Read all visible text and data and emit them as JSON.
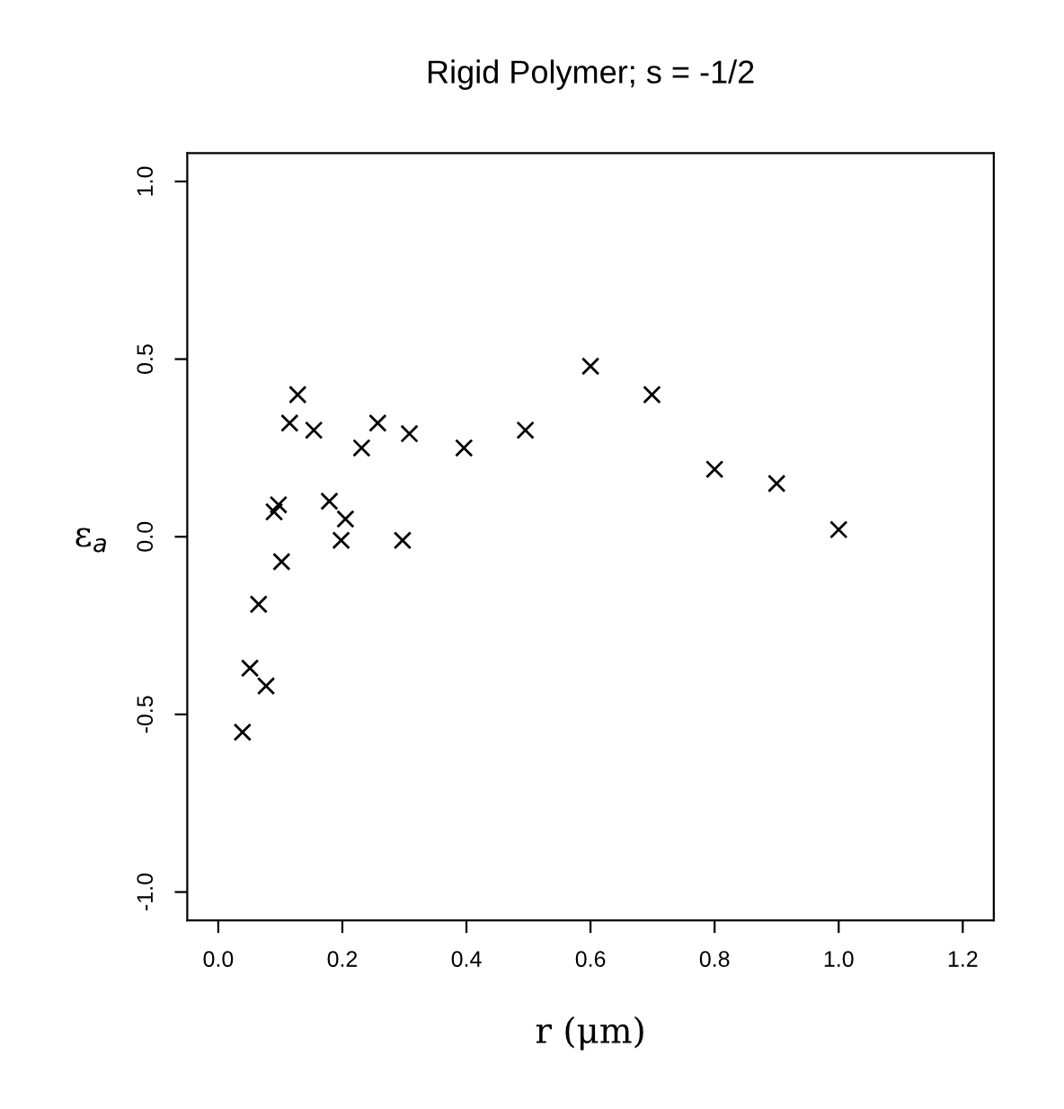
{
  "chart_data": {
    "type": "scatter",
    "title": "Rigid Polymer; s = -1/2",
    "xlabel": "r (μm)",
    "ylabel": "ε$_{a}$",
    "x": [
      0.039,
      0.051,
      0.065,
      0.077,
      0.09,
      0.097,
      0.102,
      0.115,
      0.128,
      0.154,
      0.179,
      0.198,
      0.205,
      0.231,
      0.257,
      0.297,
      0.308,
      0.396,
      0.495,
      0.6,
      0.699,
      0.8,
      0.9,
      1.0
    ],
    "values": [
      -0.55,
      -0.37,
      -0.19,
      -0.42,
      0.07,
      0.09,
      -0.07,
      0.32,
      0.4,
      0.3,
      0.1,
      -0.01,
      0.05,
      0.25,
      0.32,
      -0.01,
      0.29,
      0.25,
      0.3,
      0.48,
      0.4,
      0.19,
      0.15,
      0.02
    ],
    "color": "#000000",
    "marker": "cross",
    "xlim": [
      -0.05,
      1.25
    ],
    "ylim": [
      -1.08,
      1.08
    ],
    "xticks": [
      {
        "value": 0.0,
        "label": "0.0"
      },
      0.2,
      0.4,
      0.6,
      0.8,
      {
        "value": 1.0,
        "label": "1.0"
      },
      1.2
    ],
    "yticks": [
      {
        "value": -1.0,
        "label": "-1.0"
      },
      {
        "value": -0.5,
        "label": "-0.5"
      },
      {
        "value": 0.0,
        "label": "0.0"
      },
      {
        "value": 0.5,
        "label": "0.5"
      },
      {
        "value": 1.0,
        "label": "1.0"
      }
    ],
    "grid": false,
    "legend": false
  }
}
